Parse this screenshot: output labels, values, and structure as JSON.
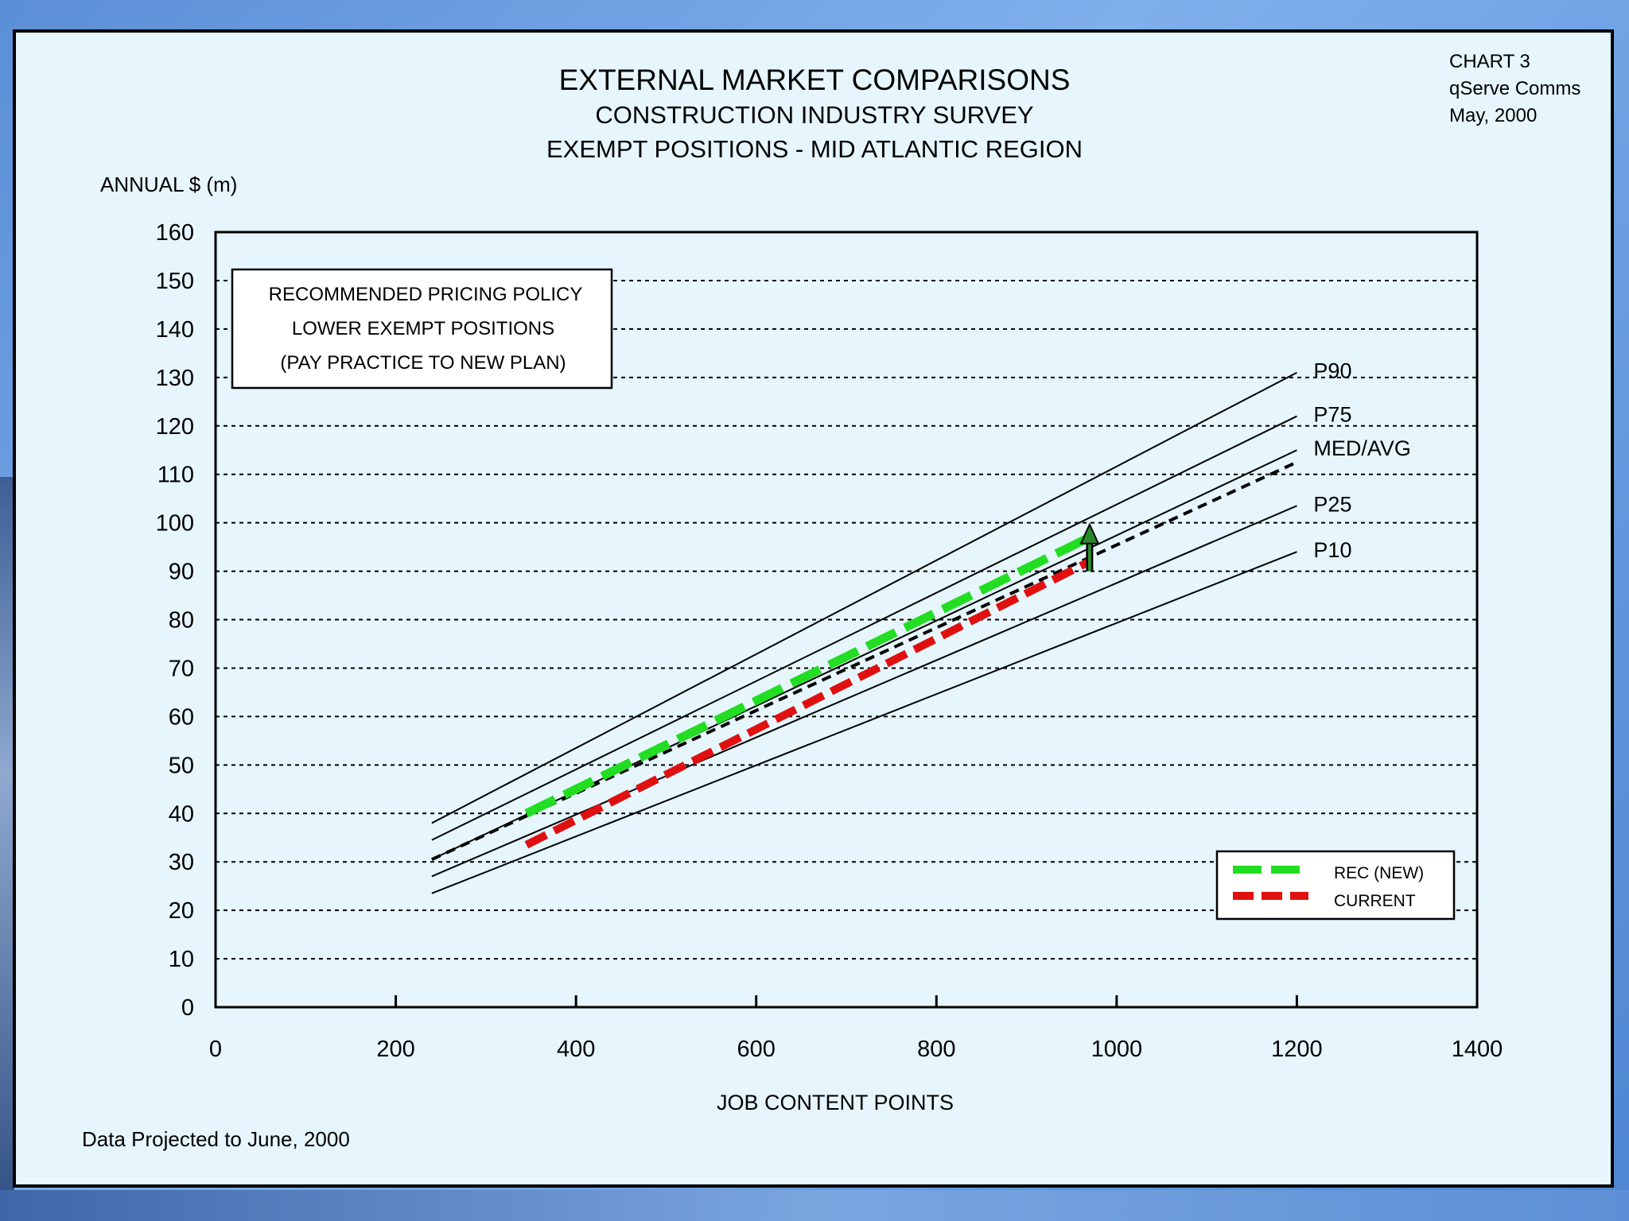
{
  "header": {
    "title": "EXTERNAL MARKET COMPARISONS",
    "subtitle1": "CONSTRUCTION INDUSTRY SURVEY",
    "subtitle2": "EXEMPT POSITIONS - MID ATLANTIC REGION"
  },
  "corner": {
    "line1": "CHART 3",
    "line2": "qServe Comms",
    "line3": "May, 2000"
  },
  "footer": {
    "note": "Data Projected to June, 2000"
  },
  "annotation_box": {
    "lines": [
      "RECOMMENDED PRICING POLICY",
      "LOWER EXEMPT POSITIONS",
      "(PAY PRACTICE TO NEW PLAN)"
    ]
  },
  "chart_data": {
    "type": "line",
    "ylabel": "ANNUAL $ (m)",
    "xlabel": "JOB CONTENT POINTS",
    "xlim": [
      0,
      1400
    ],
    "ylim": [
      0,
      160
    ],
    "xticks": [
      0,
      200,
      400,
      600,
      800,
      1000,
      1200,
      1400
    ],
    "yticks": [
      0,
      10,
      20,
      30,
      40,
      50,
      60,
      70,
      80,
      90,
      100,
      110,
      120,
      130,
      140,
      150,
      160
    ],
    "grid": "horizontal dashed",
    "series": [
      {
        "name": "P90",
        "x": [
          240,
          1200
        ],
        "y": [
          38,
          131
        ],
        "style": "solid",
        "color": "#000000"
      },
      {
        "name": "P75",
        "x": [
          240,
          1200
        ],
        "y": [
          34.5,
          122
        ],
        "style": "solid",
        "color": "#000000"
      },
      {
        "name": "MED/AVG",
        "x": [
          240,
          1200
        ],
        "y": [
          30.5,
          115
        ],
        "style": "solid",
        "color": "#000000"
      },
      {
        "name": "P25",
        "x": [
          240,
          1200
        ],
        "y": [
          27,
          103.5
        ],
        "style": "solid",
        "color": "#000000"
      },
      {
        "name": "P10",
        "x": [
          240,
          1200
        ],
        "y": [
          23.5,
          94
        ],
        "style": "solid",
        "color": "#000000"
      },
      {
        "name": "",
        "x": [
          240,
          1200
        ],
        "y": [
          30.5,
          112.5
        ],
        "style": "dashed",
        "color": "#000000"
      },
      {
        "name": "REC (NEW)",
        "x": [
          345,
          970
        ],
        "y": [
          40,
          97
        ],
        "style": "dashed",
        "color": "#22dd22"
      },
      {
        "name": "CURRENT",
        "x": [
          345,
          970
        ],
        "y": [
          33.5,
          92
        ],
        "style": "dashed",
        "color": "#e01010"
      }
    ],
    "arrow": {
      "x": 970,
      "from_y": 90,
      "to_y": 99,
      "color": "#2a8a2a"
    },
    "legend": {
      "placement": "bottom-right",
      "entries": [
        "REC (NEW)",
        "CURRENT"
      ]
    }
  }
}
